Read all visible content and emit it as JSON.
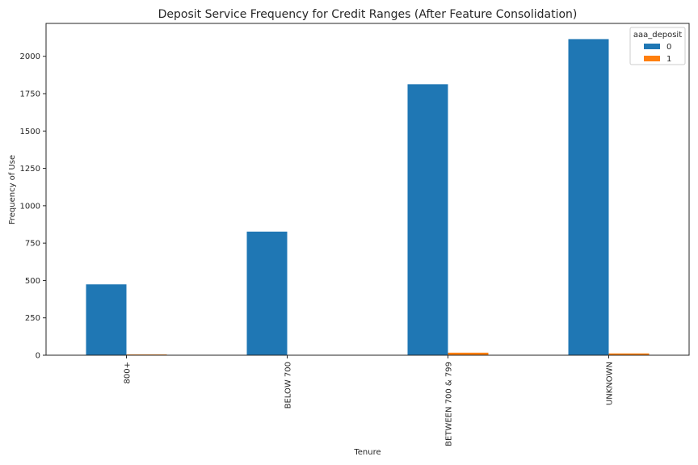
{
  "chart_data": {
    "type": "bar",
    "title": "Deposit Service Frequency for Credit Ranges (After Feature Consolidation)",
    "xlabel": "Tenure",
    "ylabel": "Frequency of Use",
    "categories": [
      "800+",
      "BELOW 700",
      "BETWEEN 700 & 799",
      "UNKNOWN"
    ],
    "series": [
      {
        "name": "0",
        "values": [
          474,
          827,
          1813,
          2115
        ],
        "color": "#1f77b4"
      },
      {
        "name": "1",
        "values": [
          5,
          1,
          17,
          12
        ],
        "color": "#ff7f0e"
      }
    ],
    "yticks": [
      0,
      250,
      500,
      750,
      1000,
      1250,
      1500,
      1750,
      2000
    ],
    "ylim": [
      0,
      2220
    ],
    "legend": {
      "title": "aaa_deposit",
      "position": "top-right"
    },
    "grid": false
  }
}
